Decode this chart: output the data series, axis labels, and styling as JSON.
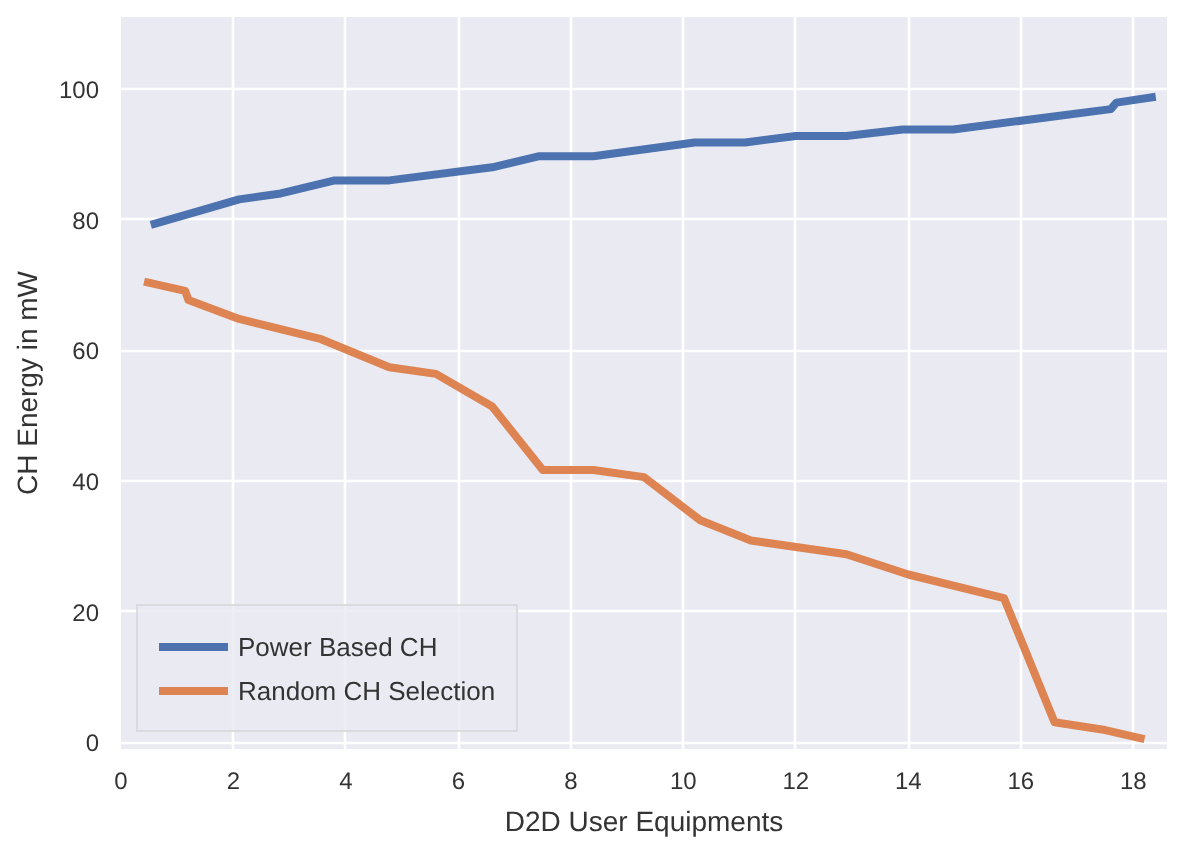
{
  "chart_data": {
    "type": "line",
    "xlabel": "D2D User Equipments",
    "ylabel": "CH Energy in mW",
    "xlim": [
      0,
      18.6
    ],
    "xticks": [
      0,
      2,
      4,
      6,
      8,
      10,
      12,
      14,
      16,
      18
    ],
    "ylim": [
      -1,
      111
    ],
    "yticks": [
      0,
      20,
      40,
      60,
      80,
      100
    ],
    "grid": true,
    "legend": "bottom left",
    "line_style": "solid",
    "series": [
      {
        "name": "Power Based CH",
        "color": "#4c72b0",
        "x": [
          0.53,
          1.38,
          2.1,
          2.84,
          3.8,
          4.77,
          6.6,
          7.44,
          8.4,
          10.2,
          11.1,
          12.0,
          12.9,
          13.9,
          14.8,
          17.6,
          17.7,
          18.4
        ],
        "values": [
          79.2,
          81.3,
          83.1,
          84,
          86,
          86,
          88,
          89.7,
          89.7,
          91.8,
          91.8,
          92.8,
          92.8,
          93.8,
          93.8,
          96.9,
          97.9,
          98.8
        ]
      },
      {
        "name": "Random CH Selection",
        "color": "#dd8452",
        "x": [
          0.41,
          1.14,
          1.2,
          2.1,
          3.56,
          4.77,
          5.6,
          6.6,
          7.5,
          8.4,
          9.3,
          10.3,
          11.2,
          12.9,
          14.0,
          15.7,
          16.6,
          17.5,
          18.2
        ],
        "values": [
          70.5,
          69.1,
          67.7,
          64.8,
          61.7,
          57.4,
          56.4,
          51.4,
          41.7,
          41.7,
          40.6,
          34,
          30.9,
          28.8,
          25.7,
          22.1,
          3.1,
          1.9,
          0.5
        ]
      }
    ]
  }
}
